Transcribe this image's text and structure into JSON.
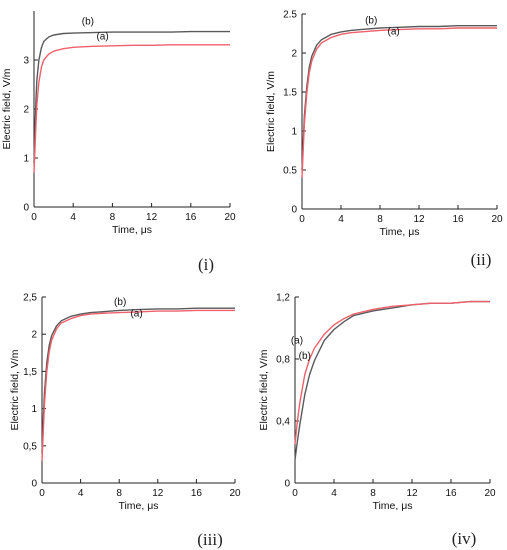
{
  "colors": {
    "series_a": "#f0606a",
    "series_b": "#5a5a5a",
    "axis": "#222222"
  },
  "chart_data": [
    {
      "panel_label": "(i)",
      "type": "line",
      "xlabel": "Time, μs",
      "ylabel": "Electric field, V/m",
      "xlim": [
        0,
        20
      ],
      "ylim": [
        0,
        4
      ],
      "xticks": [
        0,
        4,
        8,
        12,
        16,
        20
      ],
      "yticks": [
        0,
        1,
        2,
        3
      ],
      "ytick_labels": [
        "0",
        "1",
        "2",
        "3"
      ],
      "grid": false,
      "series": [
        {
          "name": "(a)",
          "color_key": "series_a",
          "label_at": [
            7.0,
            3.42
          ],
          "x": [
            0,
            0.1,
            0.2,
            0.3,
            0.5,
            0.75,
            1,
            1.5,
            2,
            3,
            4,
            6,
            8,
            10,
            12,
            14,
            16,
            18,
            20
          ],
          "y": [
            0.7,
            1.2,
            1.7,
            2.1,
            2.55,
            2.85,
            3.0,
            3.12,
            3.18,
            3.23,
            3.26,
            3.28,
            3.29,
            3.3,
            3.3,
            3.31,
            3.31,
            3.31,
            3.31
          ]
        },
        {
          "name": "(b)",
          "color_key": "series_b",
          "label_at": [
            5.5,
            3.72
          ],
          "x": [
            0,
            0.1,
            0.2,
            0.3,
            0.5,
            0.75,
            1,
            1.5,
            2,
            3,
            4,
            6,
            8,
            10,
            12,
            14,
            16,
            18,
            20
          ],
          "y": [
            0.9,
            1.6,
            2.2,
            2.6,
            3.0,
            3.25,
            3.38,
            3.47,
            3.51,
            3.54,
            3.55,
            3.56,
            3.57,
            3.57,
            3.57,
            3.57,
            3.58,
            3.58,
            3.58
          ]
        }
      ]
    },
    {
      "panel_label": "(ii)",
      "type": "line",
      "xlabel": "Time, μs",
      "ylabel": "Electric field, V/m",
      "xlim": [
        0,
        20
      ],
      "ylim": [
        0,
        2.5
      ],
      "xticks": [
        0,
        4,
        8,
        12,
        16,
        20
      ],
      "yticks": [
        0,
        0.5,
        1,
        1.5,
        2,
        2.5
      ],
      "ytick_labels": [
        "0",
        "0.5",
        "1",
        "1.5",
        "2",
        "2.5"
      ],
      "grid": false,
      "series": [
        {
          "name": "(a)",
          "color_key": "series_a",
          "label_at": [
            9.4,
            2.24
          ],
          "x": [
            0,
            0.1,
            0.25,
            0.5,
            0.75,
            1,
            1.5,
            2,
            3,
            4,
            5,
            6,
            8,
            10,
            12,
            14,
            16,
            18,
            20
          ],
          "y": [
            0.4,
            0.7,
            1.1,
            1.5,
            1.75,
            1.9,
            2.05,
            2.13,
            2.2,
            2.24,
            2.26,
            2.27,
            2.29,
            2.3,
            2.31,
            2.31,
            2.32,
            2.32,
            2.32
          ]
        },
        {
          "name": "(b)",
          "color_key": "series_b",
          "label_at": [
            7.1,
            2.38
          ],
          "x": [
            0,
            0.1,
            0.25,
            0.5,
            0.75,
            1,
            1.5,
            2,
            3,
            4,
            5,
            6,
            8,
            10,
            12,
            14,
            16,
            18,
            20
          ],
          "y": [
            0.5,
            0.8,
            1.2,
            1.58,
            1.82,
            1.96,
            2.1,
            2.17,
            2.24,
            2.27,
            2.29,
            2.3,
            2.32,
            2.33,
            2.34,
            2.34,
            2.35,
            2.35,
            2.35
          ]
        }
      ]
    },
    {
      "panel_label": "(iii)",
      "type": "line",
      "xlabel": "Time, μs",
      "ylabel": "Electric field, V/m",
      "xlim": [
        0,
        20
      ],
      "ylim": [
        0,
        2.5
      ],
      "xticks": [
        0,
        4,
        8,
        12,
        16,
        20
      ],
      "yticks": [
        0,
        0.5,
        1,
        1.5,
        2,
        2.5
      ],
      "ytick_labels": [
        "0",
        "0,5",
        "1",
        "1,5",
        "2",
        "2,5"
      ],
      "grid": false,
      "series": [
        {
          "name": "(a)",
          "color_key": "series_a",
          "label_at": [
            9.8,
            2.24
          ],
          "x": [
            0,
            0.1,
            0.25,
            0.5,
            0.75,
            1,
            1.5,
            2,
            3,
            4,
            5,
            6,
            8,
            10,
            12,
            14,
            16,
            18,
            20
          ],
          "y": [
            0.3,
            0.6,
            1.05,
            1.5,
            1.76,
            1.92,
            2.07,
            2.15,
            2.21,
            2.25,
            2.27,
            2.28,
            2.29,
            2.3,
            2.31,
            2.31,
            2.32,
            2.32,
            2.32
          ]
        },
        {
          "name": "(b)",
          "color_key": "series_b",
          "label_at": [
            8.1,
            2.39
          ],
          "x": [
            0,
            0.1,
            0.25,
            0.5,
            0.75,
            1,
            1.5,
            2,
            3,
            4,
            5,
            6,
            8,
            10,
            12,
            14,
            16,
            18,
            20
          ],
          "y": [
            0.4,
            0.75,
            1.2,
            1.62,
            1.85,
            1.98,
            2.11,
            2.18,
            2.24,
            2.27,
            2.29,
            2.3,
            2.32,
            2.33,
            2.34,
            2.34,
            2.35,
            2.35,
            2.35
          ]
        }
      ]
    },
    {
      "panel_label": "(iv)",
      "type": "line",
      "xlabel": "Time, μs",
      "ylabel": "Electric field, V/m",
      "xlim": [
        0,
        20
      ],
      "ylim": [
        0,
        1.2
      ],
      "xticks": [
        0,
        4,
        8,
        12,
        16,
        20
      ],
      "yticks": [
        0,
        0.4,
        0.8,
        1.2
      ],
      "ytick_labels": [
        "0",
        "0,4",
        "0,8",
        "1,2"
      ],
      "grid": false,
      "series": [
        {
          "name": "(a)",
          "color_key": "series_a",
          "label_at": [
            0.2,
            0.9
          ],
          "x": [
            0,
            0.25,
            0.5,
            1,
            1.5,
            2,
            3,
            4,
            5,
            6,
            8,
            10,
            12,
            14,
            16,
            18,
            20
          ],
          "y": [
            0.25,
            0.4,
            0.52,
            0.7,
            0.8,
            0.87,
            0.96,
            1.02,
            1.06,
            1.09,
            1.12,
            1.14,
            1.15,
            1.16,
            1.16,
            1.17,
            1.17
          ]
        },
        {
          "name": "(b)",
          "color_key": "series_b",
          "label_at": [
            1.0,
            0.8
          ],
          "x": [
            0,
            0.25,
            0.5,
            1,
            1.5,
            2,
            3,
            4,
            5,
            6,
            8,
            10,
            12,
            14,
            16,
            18,
            20
          ],
          "y": [
            0.15,
            0.27,
            0.38,
            0.57,
            0.7,
            0.79,
            0.92,
            0.99,
            1.04,
            1.08,
            1.11,
            1.13,
            1.15,
            1.16,
            1.16,
            1.17,
            1.17
          ]
        }
      ]
    }
  ]
}
